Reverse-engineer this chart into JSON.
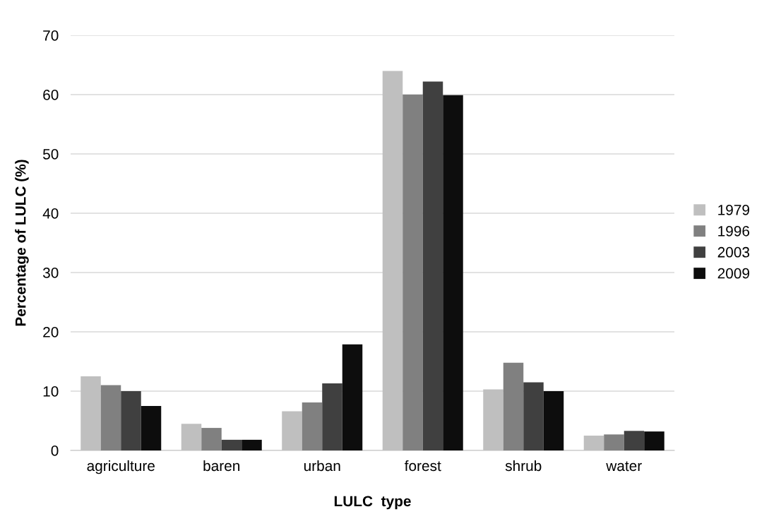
{
  "chart_data": {
    "type": "bar",
    "xlabel": "LULC  type",
    "ylabel": "Percentage of LULC (%)",
    "categories": [
      "agriculture",
      "baren",
      "urban",
      "forest",
      "shrub",
      "water"
    ],
    "series": [
      {
        "name": "1979",
        "color": "#bfbfbf",
        "values": [
          12.5,
          4.5,
          6.6,
          64,
          10.3,
          2.5
        ]
      },
      {
        "name": "1996",
        "color": "#808080",
        "values": [
          11,
          3.8,
          8.1,
          60,
          14.8,
          2.7
        ]
      },
      {
        "name": "2003",
        "color": "#404040",
        "values": [
          10,
          1.8,
          11.3,
          62.2,
          11.5,
          3.3
        ]
      },
      {
        "name": "2009",
        "color": "#0d0d0d",
        "values": [
          7.5,
          1.8,
          17.9,
          59.9,
          10,
          3.2
        ]
      }
    ],
    "ylim": [
      0,
      70
    ],
    "yticks": [
      0,
      10,
      20,
      30,
      40,
      50,
      60,
      70
    ],
    "grid": "y",
    "legend": "right"
  }
}
